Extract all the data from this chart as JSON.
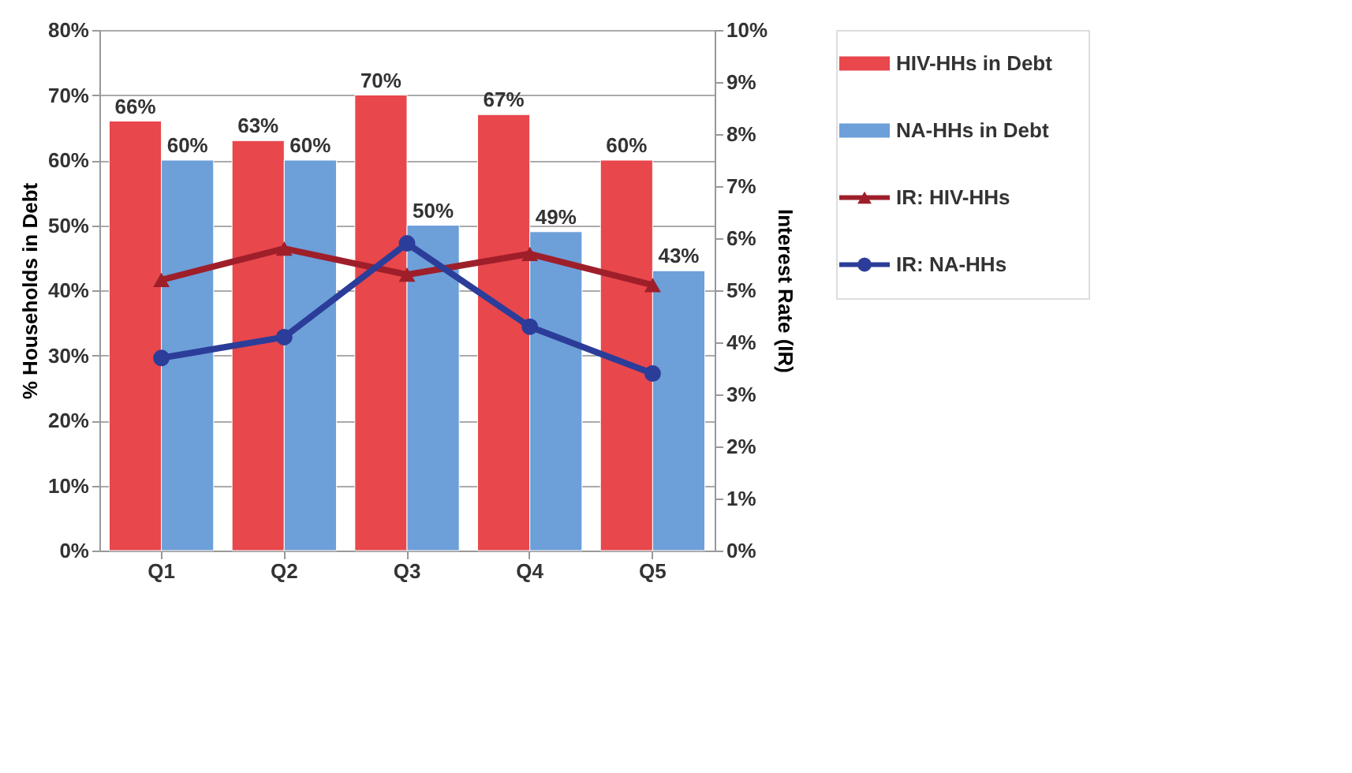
{
  "chart_data": {
    "type": "bar",
    "ylabel": "% Households in Debt",
    "y2label": "Interest Rate (IR)",
    "categories": [
      "Q1",
      "Q2",
      "Q3",
      "Q4",
      "Q5"
    ],
    "series": [
      {
        "name": "HIV-HHs in Debt",
        "type": "bar",
        "color": "#e8474c",
        "values": [
          66,
          63,
          70,
          67,
          60
        ],
        "value_labels": [
          "66%",
          "63%",
          "70%",
          "67%",
          "60%"
        ]
      },
      {
        "name": "NA-HHs in Debt",
        "type": "bar",
        "color": "#6d9fd9",
        "values": [
          60,
          60,
          50,
          49,
          43
        ],
        "value_labels": [
          "60%",
          "60%",
          "50%",
          "49%",
          "43%"
        ]
      },
      {
        "name": "IR: HIV-HHs",
        "type": "line",
        "axis": "y2",
        "marker": "triangle",
        "color": "#9e1f2a",
        "values": [
          5.2,
          5.8,
          5.3,
          5.7,
          5.1
        ]
      },
      {
        "name": "IR: NA-HHs",
        "type": "line",
        "axis": "y2",
        "marker": "circle",
        "color": "#2b3d99",
        "values": [
          3.7,
          4.1,
          5.9,
          4.3,
          3.4
        ]
      }
    ],
    "ylim": [
      0,
      80
    ],
    "yticks": [
      {
        "value": 0,
        "label": "0%"
      },
      {
        "value": 10,
        "label": "10%"
      },
      {
        "value": 20,
        "label": "20%"
      },
      {
        "value": 30,
        "label": "30%"
      },
      {
        "value": 40,
        "label": "40%"
      },
      {
        "value": 50,
        "label": "50%"
      },
      {
        "value": 60,
        "label": "60%"
      },
      {
        "value": 70,
        "label": "70%"
      },
      {
        "value": 80,
        "label": "80%"
      }
    ],
    "y2lim": [
      0,
      10
    ],
    "y2ticks": [
      {
        "value": 0,
        "label": "0%"
      },
      {
        "value": 1,
        "label": "1%"
      },
      {
        "value": 2,
        "label": "2%"
      },
      {
        "value": 3,
        "label": "3%"
      },
      {
        "value": 4,
        "label": "4%"
      },
      {
        "value": 5,
        "label": "5%"
      },
      {
        "value": 6,
        "label": "6%"
      },
      {
        "value": 7,
        "label": "7%"
      },
      {
        "value": 8,
        "label": "8%"
      },
      {
        "value": 9,
        "label": "9%"
      },
      {
        "value": 10,
        "label": "10%"
      }
    ],
    "grid": "y",
    "legend": "right"
  }
}
